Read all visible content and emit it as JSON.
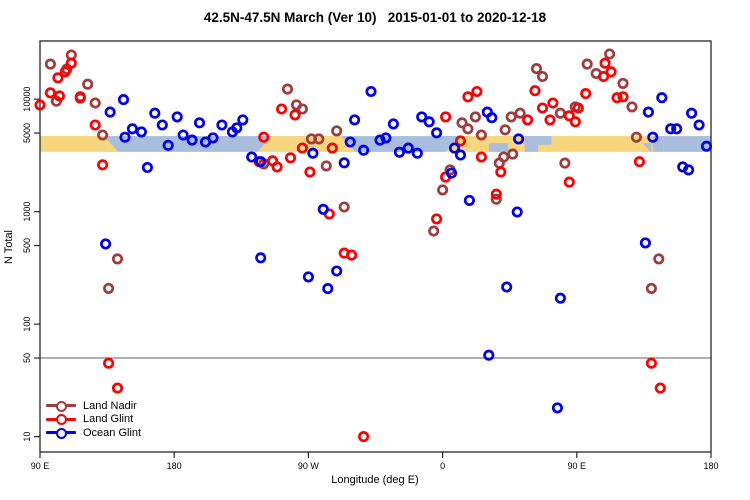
{
  "chart_data": {
    "type": "scatter",
    "title": "42.5N-47.5N March (Ver 10)   2015-01-01 to 2020-12-18",
    "xlabel": "Longitude (deg E)",
    "ylabel": "N Total",
    "x_axis": {
      "unwrapped_range": [
        90,
        540
      ],
      "ticks": [
        {
          "u": 90,
          "label": "90 E"
        },
        {
          "u": 180,
          "label": "180"
        },
        {
          "u": 270,
          "label": "90 W"
        },
        {
          "u": 360,
          "label": "0"
        },
        {
          "u": 450,
          "label": "90 E"
        },
        {
          "u": 540,
          "label": "180"
        }
      ]
    },
    "y_axis": {
      "scale": "log",
      "range": [
        7.3,
        32900
      ],
      "ticks": [
        10,
        50,
        100,
        500,
        1000,
        5000,
        10000
      ]
    },
    "reference_line": {
      "y": 50,
      "color": "#7f7f7f"
    },
    "surface_band": {
      "value_top": 4700,
      "value_bottom": 3400,
      "land_color": "#F7D67E",
      "ocean_color": "#A8BEDC",
      "segments": [
        {
          "from": 90,
          "to": 133,
          "type": "land"
        },
        {
          "from": 133,
          "to": 236,
          "type": "ocean"
        },
        {
          "from": 236,
          "to": 292,
          "type": "land"
        },
        {
          "from": 292,
          "to": 362,
          "type": "ocean"
        },
        {
          "from": 362,
          "to": 508,
          "type": "land"
        },
        {
          "from": 508,
          "to": 540,
          "type": "ocean"
        }
      ],
      "patches": [
        {
          "from": 391,
          "to": 404,
          "type": "ocean",
          "extent": "bottom"
        },
        {
          "from": 415,
          "to": 424,
          "type": "ocean",
          "extent": "full"
        },
        {
          "from": 424,
          "to": 433,
          "type": "ocean",
          "extent": "top"
        },
        {
          "from": 494,
          "to": 500,
          "type": "ocean",
          "extent": "bottom"
        },
        {
          "from": 501,
          "to": 508,
          "type": "ocean",
          "extent": "full"
        }
      ],
      "coast_wedges": [
        {
          "at": 133,
          "type": "land",
          "side": "right-bottom"
        },
        {
          "at": 236,
          "type": "ocean",
          "side": "right-top"
        },
        {
          "at": 292,
          "type": "land",
          "side": "right-bottom"
        },
        {
          "at": 362,
          "type": "ocean",
          "side": "right-top"
        },
        {
          "at": 490,
          "type": "land",
          "side": "right-bottom"
        }
      ]
    },
    "series": [
      {
        "name": "Land Nadir",
        "color": "#A03C3C",
        "points": [
          [
            97,
            20500
          ],
          [
            111,
            24700
          ],
          [
            108,
            18500
          ],
          [
            122,
            13600
          ],
          [
            117,
            10200
          ],
          [
            127,
            9250
          ],
          [
            101,
            9600
          ],
          [
            132,
            4800
          ],
          [
            256,
            12300
          ],
          [
            262,
            8900
          ],
          [
            266,
            8170
          ],
          [
            289,
            5220
          ],
          [
            272,
            4430
          ],
          [
            277,
            4430
          ],
          [
            282,
            2550
          ],
          [
            382,
            6960
          ],
          [
            373,
            6160
          ],
          [
            377,
            5450
          ],
          [
            386,
            4800
          ],
          [
            365,
            2350
          ],
          [
            423,
            18700
          ],
          [
            427,
            15900
          ],
          [
            472,
            25200
          ],
          [
            457,
            20500
          ],
          [
            463,
            16900
          ],
          [
            481,
            13800
          ],
          [
            487,
            8530
          ],
          [
            439,
            7500
          ],
          [
            449,
            8530
          ],
          [
            402,
            5340
          ],
          [
            406,
            6960
          ],
          [
            412,
            7500
          ],
          [
            490,
            4590
          ],
          [
            407,
            3250
          ],
          [
            401,
            3060
          ],
          [
            398,
            2700
          ],
          [
            442,
            2700
          ],
          [
            240,
            2660
          ],
          [
            294,
            1100
          ],
          [
            142,
            380
          ],
          [
            136,
            208
          ],
          [
            360,
            1560
          ],
          [
            354,
            673
          ],
          [
            396,
            1290
          ],
          [
            505,
            380
          ],
          [
            500,
            208
          ]
        ]
      },
      {
        "name": "Land Glint",
        "color": "#FF0000",
        "points": [
          [
            90,
            8870
          ],
          [
            111,
            20900
          ],
          [
            107,
            17500
          ],
          [
            102,
            15500
          ],
          [
            97,
            11400
          ],
          [
            103,
            10700
          ],
          [
            117,
            10500
          ],
          [
            127,
            5890
          ],
          [
            132,
            2610
          ],
          [
            240,
            4590
          ],
          [
            252,
            8170
          ],
          [
            261,
            7250
          ],
          [
            266,
            3670
          ],
          [
            286,
            3670
          ],
          [
            258,
            3010
          ],
          [
            246,
            2830
          ],
          [
            271,
            2250
          ],
          [
            237,
            2780
          ],
          [
            249,
            2500
          ],
          [
            377,
            10500
          ],
          [
            383,
            11700
          ],
          [
            362,
            6960
          ],
          [
            372,
            4260
          ],
          [
            386,
            3060
          ],
          [
            469,
            20900
          ],
          [
            473,
            17500
          ],
          [
            468,
            15900
          ],
          [
            422,
            11900
          ],
          [
            456,
            11200
          ],
          [
            477,
            10300
          ],
          [
            481,
            10500
          ],
          [
            427,
            8350
          ],
          [
            434,
            9250
          ],
          [
            432,
            6540
          ],
          [
            451,
            8350
          ],
          [
            445,
            7110
          ],
          [
            449,
            6290
          ],
          [
            417,
            6540
          ],
          [
            492,
            2780
          ],
          [
            284,
            953
          ],
          [
            294,
            428
          ],
          [
            299,
            411
          ],
          [
            362,
            2030
          ],
          [
            396,
            1430
          ],
          [
            356,
            863
          ],
          [
            399,
            2250
          ],
          [
            445,
            1830
          ],
          [
            136,
            45
          ],
          [
            142,
            27
          ],
          [
            500,
            45
          ],
          [
            506,
            27
          ],
          [
            307,
            10
          ]
        ]
      },
      {
        "name": "Ocean Glint",
        "color": "#0000EE",
        "points": [
          [
            146,
            9920
          ],
          [
            137,
            7670
          ],
          [
            167,
            7500
          ],
          [
            147,
            4590
          ],
          [
            152,
            5450
          ],
          [
            158,
            5120
          ],
          [
            172,
            5890
          ],
          [
            182,
            6960
          ],
          [
            197,
            6160
          ],
          [
            212,
            5890
          ],
          [
            219,
            5120
          ],
          [
            222,
            5560
          ],
          [
            226,
            6540
          ],
          [
            186,
            4800
          ],
          [
            192,
            4330
          ],
          [
            201,
            4160
          ],
          [
            206,
            4530
          ],
          [
            176,
            3890
          ],
          [
            232,
            3060
          ],
          [
            238,
            2780
          ],
          [
            162,
            2470
          ],
          [
            312,
            11700
          ],
          [
            301,
            6540
          ],
          [
            327,
            6030
          ],
          [
            346,
            6960
          ],
          [
            351,
            6290
          ],
          [
            298,
            4160
          ],
          [
            307,
            3520
          ],
          [
            318,
            4330
          ],
          [
            322,
            4530
          ],
          [
            331,
            3380
          ],
          [
            337,
            3670
          ],
          [
            343,
            3310
          ],
          [
            356,
            5020
          ],
          [
            368,
            3670
          ],
          [
            372,
            3190
          ],
          [
            390,
            7670
          ],
          [
            393,
            6850
          ],
          [
            273,
            3310
          ],
          [
            507,
            10300
          ],
          [
            498,
            7670
          ],
          [
            527,
            7500
          ],
          [
            532,
            5890
          ],
          [
            513,
            5450
          ],
          [
            517,
            5450
          ],
          [
            501,
            4590
          ],
          [
            411,
            4430
          ],
          [
            537,
            3820
          ],
          [
            521,
            2500
          ],
          [
            294,
            2720
          ],
          [
            280,
            1050
          ],
          [
            134,
            517
          ],
          [
            238,
            389
          ],
          [
            289,
            297
          ],
          [
            270,
            263
          ],
          [
            283,
            207
          ],
          [
            366,
            2200
          ],
          [
            378,
            1260
          ],
          [
            410,
            993
          ],
          [
            525,
            2350
          ],
          [
            496,
            528
          ],
          [
            403,
            214
          ],
          [
            439,
            170
          ],
          [
            391,
            53
          ],
          [
            437,
            18
          ]
        ]
      }
    ]
  },
  "legend": {
    "items": [
      {
        "label": "Land Nadir",
        "color": "#A03C3C"
      },
      {
        "label": "Land Glint",
        "color": "#FF0000"
      },
      {
        "label": "Ocean Glint",
        "color": "#0000EE"
      }
    ]
  }
}
